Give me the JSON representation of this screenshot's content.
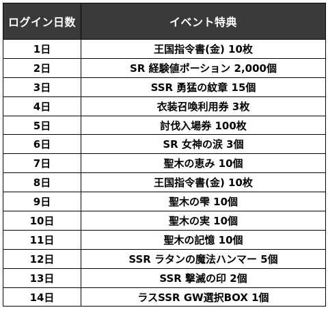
{
  "table": {
    "headers": [
      "ログイン日数",
      "イベント特典"
    ],
    "rows": [
      {
        "day": "1日",
        "reward": "王国指令書(金) 10枚"
      },
      {
        "day": "2日",
        "reward": "SR 経験値ポーション 2,000個"
      },
      {
        "day": "3日",
        "reward": "SSR 勇猛の紋章 15個"
      },
      {
        "day": "4日",
        "reward": "衣装召喚利用券 3枚"
      },
      {
        "day": "5日",
        "reward": "討伐入場券 100枚"
      },
      {
        "day": "6日",
        "reward": "SR 女神の涙 3個"
      },
      {
        "day": "7日",
        "reward": "聖木の恵み 10個"
      },
      {
        "day": "8日",
        "reward": "王国指令書(金) 10枚"
      },
      {
        "day": "9日",
        "reward": "聖木の雫 10個"
      },
      {
        "day": "10日",
        "reward": "聖木の実 10個"
      },
      {
        "day": "11日",
        "reward": "聖木の記憶 10個"
      },
      {
        "day": "12日",
        "reward": "SSR ラタンの魔法ハンマー 5個"
      },
      {
        "day": "13日",
        "reward": "SSR 撃滅の印 2個"
      },
      {
        "day": "14日",
        "reward": "ラスSSR GW選択BOX 1個"
      }
    ]
  },
  "colors": {
    "header_bg": "#3a3a3a",
    "header_text": "#ffffff",
    "border": "#000000"
  }
}
